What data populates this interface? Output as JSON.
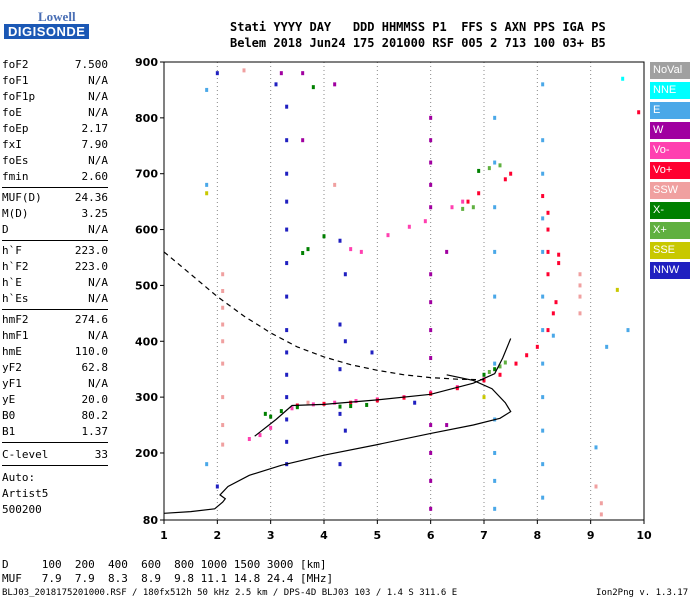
{
  "logo": {
    "line1": "Lowell",
    "line2": "DIGISONDE"
  },
  "header": {
    "line1": "Stati YYYY DAY   DDD HHMMSS P1  FFS S AXN PPS IGA PS",
    "line2": "Belem 2018 Jun24 175 201000 RSF 005 2 713 100 03+ B5"
  },
  "params_group1": [
    {
      "name": "foF2",
      "value": "7.500"
    },
    {
      "name": "foF1",
      "value": "N/A"
    },
    {
      "name": "foF1p",
      "value": "N/A"
    },
    {
      "name": "foE",
      "value": "N/A"
    },
    {
      "name": "foEp",
      "value": "2.17"
    },
    {
      "name": "fxI",
      "value": "7.90"
    },
    {
      "name": "foEs",
      "value": "N/A"
    },
    {
      "name": "fmin",
      "value": "2.60"
    }
  ],
  "params_group2": [
    {
      "name": "MUF(D)",
      "value": "24.36"
    },
    {
      "name": "M(D)",
      "value": "3.25"
    },
    {
      "name": "D",
      "value": "N/A"
    }
  ],
  "params_group3": [
    {
      "name": "h`F",
      "value": "223.0"
    },
    {
      "name": "h`F2",
      "value": "223.0"
    },
    {
      "name": "h`E",
      "value": "N/A"
    },
    {
      "name": "h`Es",
      "value": "N/A"
    }
  ],
  "params_group4": [
    {
      "name": "hmF2",
      "value": "274.6"
    },
    {
      "name": "hmF1",
      "value": "N/A"
    },
    {
      "name": "hmE",
      "value": "110.0"
    },
    {
      "name": "yF2",
      "value": "62.8"
    },
    {
      "name": "yF1",
      "value": "N/A"
    },
    {
      "name": "yE",
      "value": "20.0"
    },
    {
      "name": "B0",
      "value": "80.2"
    },
    {
      "name": "B1",
      "value": "1.37"
    }
  ],
  "clevel": {
    "name": "C-level",
    "value": "33"
  },
  "auto": {
    "line1": "Auto:",
    "line2": "Artist5",
    "line3": "500200"
  },
  "legend": [
    {
      "label": "NoVal",
      "color": "#a0a0a0"
    },
    {
      "label": "NNE",
      "color": "#00ffff"
    },
    {
      "label": "E",
      "color": "#4aa8e8"
    },
    {
      "label": "W",
      "color": "#a000a0"
    },
    {
      "label": "Vo-",
      "color": "#ff40b0"
    },
    {
      "label": "Vo+",
      "color": "#ff0030"
    },
    {
      "label": "SSW",
      "color": "#f0a0a0"
    },
    {
      "label": "X-",
      "color": "#008000"
    },
    {
      "label": "X+",
      "color": "#60b040"
    },
    {
      "label": "SSE",
      "color": "#c8c800"
    },
    {
      "label": "NNW",
      "color": "#2020c0"
    }
  ],
  "footer": {
    "line1": "D     100  200  400  600  800 1000 1500 3000 [km]",
    "line2": "MUF   7.9  7.9  8.3  8.9  9.8 11.1 14.8 24.4 [MHz]",
    "line3": "BLJ03_2018175201000.RSF / 180fx512h 50 kHz 2.5 km / DPS-4D BLJ03 103 / 1.4 S 311.6 E",
    "version": "Ion2Png v. 1.3.17"
  },
  "chart_data": {
    "type": "scatter",
    "title": "",
    "xlabel": "",
    "ylabel": "",
    "xlim": [
      1,
      10
    ],
    "ylim": [
      80,
      900
    ],
    "xticks": [
      1,
      2,
      3,
      4,
      5,
      6,
      7,
      8,
      9,
      10
    ],
    "yticks": [
      80,
      200,
      300,
      400,
      500,
      600,
      700,
      800,
      900
    ],
    "lines": [
      {
        "name": "profile",
        "color": "#000000",
        "style": "solid",
        "points": [
          [
            1.0,
            92
          ],
          [
            1.5,
            95
          ],
          [
            1.95,
            100
          ],
          [
            2.1,
            112
          ],
          [
            2.15,
            118
          ],
          [
            2.05,
            125
          ],
          [
            2.2,
            140
          ],
          [
            2.6,
            160
          ],
          [
            3.2,
            178
          ],
          [
            4.0,
            196
          ],
          [
            5.0,
            215
          ],
          [
            6.0,
            235
          ],
          [
            6.8,
            250
          ],
          [
            7.3,
            262
          ],
          [
            7.5,
            274
          ],
          [
            7.4,
            290
          ],
          [
            7.15,
            315
          ],
          [
            6.8,
            330
          ],
          [
            6.3,
            340
          ]
        ]
      },
      {
        "name": "trace",
        "color": "#000000",
        "style": "solid",
        "points": [
          [
            2.7,
            230
          ],
          [
            3.1,
            260
          ],
          [
            3.4,
            285
          ],
          [
            4.0,
            287
          ],
          [
            5.0,
            295
          ],
          [
            6.0,
            305
          ],
          [
            6.8,
            325
          ],
          [
            7.2,
            342
          ],
          [
            7.35,
            370
          ],
          [
            7.5,
            405
          ]
        ]
      },
      {
        "name": "extrapolation",
        "color": "#000000",
        "style": "dashed",
        "points": [
          [
            1.0,
            560
          ],
          [
            1.5,
            520
          ],
          [
            2.0,
            480
          ],
          [
            2.5,
            445
          ],
          [
            3.0,
            415
          ],
          [
            3.5,
            390
          ],
          [
            4.0,
            372
          ],
          [
            4.5,
            358
          ],
          [
            5.0,
            348
          ],
          [
            5.5,
            340
          ],
          [
            6.0,
            335
          ],
          [
            6.5,
            332
          ],
          [
            7.0,
            331
          ]
        ]
      }
    ],
    "series": [
      {
        "name": "NNW",
        "color": "#2020c0",
        "points": [
          [
            3.3,
            820
          ],
          [
            3.3,
            760
          ],
          [
            3.3,
            700
          ],
          [
            3.3,
            650
          ],
          [
            3.3,
            600
          ],
          [
            3.3,
            540
          ],
          [
            3.3,
            480
          ],
          [
            3.3,
            420
          ],
          [
            3.3,
            380
          ],
          [
            3.3,
            340
          ],
          [
            3.3,
            300
          ],
          [
            3.3,
            260
          ],
          [
            3.3,
            220
          ],
          [
            3.3,
            180
          ],
          [
            4.3,
            580
          ],
          [
            4.3,
            430
          ],
          [
            4.3,
            350
          ],
          [
            4.3,
            270
          ],
          [
            4.3,
            180
          ],
          [
            4.4,
            520
          ],
          [
            4.4,
            400
          ],
          [
            4.4,
            240
          ],
          [
            2.0,
            880
          ],
          [
            2.0,
            140
          ],
          [
            3.1,
            860
          ],
          [
            4.9,
            380
          ],
          [
            5.7,
            290
          ]
        ]
      },
      {
        "name": "W",
        "color": "#a000a0",
        "points": [
          [
            6.0,
            800
          ],
          [
            6.0,
            760
          ],
          [
            6.0,
            720
          ],
          [
            6.0,
            680
          ],
          [
            6.0,
            640
          ],
          [
            6.0,
            520
          ],
          [
            6.0,
            470
          ],
          [
            6.0,
            420
          ],
          [
            6.0,
            370
          ],
          [
            6.0,
            250
          ],
          [
            6.0,
            200
          ],
          [
            6.0,
            150
          ],
          [
            6.0,
            100
          ],
          [
            3.6,
            880
          ],
          [
            3.6,
            760
          ],
          [
            4.2,
            860
          ],
          [
            3.2,
            880
          ],
          [
            6.3,
            250
          ],
          [
            6.3,
            560
          ]
        ]
      },
      {
        "name": "E",
        "color": "#4aa8e8",
        "points": [
          [
            7.2,
            800
          ],
          [
            7.2,
            720
          ],
          [
            7.2,
            640
          ],
          [
            7.2,
            560
          ],
          [
            7.2,
            480
          ],
          [
            7.2,
            360
          ],
          [
            7.2,
            260
          ],
          [
            7.2,
            200
          ],
          [
            7.2,
            150
          ],
          [
            7.2,
            100
          ],
          [
            8.1,
            860
          ],
          [
            8.1,
            760
          ],
          [
            8.1,
            700
          ],
          [
            8.1,
            620
          ],
          [
            8.1,
            560
          ],
          [
            8.1,
            480
          ],
          [
            8.1,
            420
          ],
          [
            8.1,
            360
          ],
          [
            8.1,
            300
          ],
          [
            8.1,
            240
          ],
          [
            8.1,
            180
          ],
          [
            8.1,
            120
          ],
          [
            1.8,
            850
          ],
          [
            1.8,
            680
          ],
          [
            1.8,
            180
          ],
          [
            8.3,
            410
          ],
          [
            9.3,
            390
          ],
          [
            9.7,
            420
          ],
          [
            9.1,
            210
          ]
        ]
      },
      {
        "name": "Vo-",
        "color": "#ff40b0",
        "points": [
          [
            2.6,
            225
          ],
          [
            2.8,
            232
          ],
          [
            3.0,
            245
          ],
          [
            3.4,
            280
          ],
          [
            3.8,
            287
          ],
          [
            4.2,
            290
          ],
          [
            4.6,
            293
          ],
          [
            5.0,
            296
          ],
          [
            5.5,
            300
          ],
          [
            6.0,
            308
          ],
          [
            6.5,
            318
          ],
          [
            7.0,
            332
          ],
          [
            4.5,
            565
          ],
          [
            4.7,
            560
          ],
          [
            5.2,
            590
          ],
          [
            5.6,
            605
          ],
          [
            5.9,
            615
          ],
          [
            6.4,
            640
          ],
          [
            6.6,
            650
          ]
        ]
      },
      {
        "name": "Vo+",
        "color": "#ff0030",
        "points": [
          [
            3.5,
            285
          ],
          [
            4.0,
            288
          ],
          [
            4.5,
            290
          ],
          [
            5.0,
            294
          ],
          [
            5.5,
            299
          ],
          [
            6.0,
            306
          ],
          [
            6.5,
            316
          ],
          [
            7.0,
            330
          ],
          [
            7.3,
            340
          ],
          [
            7.6,
            360
          ],
          [
            7.8,
            375
          ],
          [
            8.0,
            390
          ],
          [
            8.2,
            420
          ],
          [
            8.3,
            450
          ],
          [
            8.35,
            470
          ],
          [
            8.1,
            660
          ],
          [
            8.2,
            630
          ],
          [
            8.2,
            600
          ],
          [
            8.2,
            560
          ],
          [
            8.2,
            520
          ],
          [
            8.4,
            540
          ],
          [
            8.4,
            555
          ],
          [
            6.7,
            650
          ],
          [
            6.9,
            665
          ],
          [
            7.4,
            690
          ],
          [
            7.5,
            700
          ],
          [
            9.9,
            810
          ]
        ]
      },
      {
        "name": "SSW",
        "color": "#f0a0a0",
        "points": [
          [
            2.1,
            520
          ],
          [
            2.1,
            490
          ],
          [
            2.1,
            460
          ],
          [
            2.1,
            430
          ],
          [
            2.1,
            400
          ],
          [
            2.1,
            360
          ],
          [
            2.1,
            300
          ],
          [
            2.1,
            250
          ],
          [
            2.1,
            215
          ],
          [
            8.8,
            520
          ],
          [
            8.8,
            500
          ],
          [
            8.8,
            480
          ],
          [
            8.8,
            450
          ],
          [
            9.1,
            140
          ],
          [
            9.2,
            110
          ],
          [
            9.2,
            90
          ],
          [
            4.2,
            680
          ],
          [
            2.5,
            885
          ],
          [
            3.7,
            290
          ]
        ]
      },
      {
        "name": "X-",
        "color": "#008000",
        "points": [
          [
            2.9,
            270
          ],
          [
            3.0,
            265
          ],
          [
            3.2,
            275
          ],
          [
            3.5,
            282
          ],
          [
            4.3,
            283
          ],
          [
            4.5,
            284
          ],
          [
            4.8,
            286
          ],
          [
            7.0,
            340
          ],
          [
            7.2,
            350
          ],
          [
            3.6,
            558
          ],
          [
            3.7,
            565
          ],
          [
            4.0,
            588
          ],
          [
            3.8,
            855
          ],
          [
            6.9,
            705
          ]
        ]
      },
      {
        "name": "X+",
        "color": "#60b040",
        "points": [
          [
            7.1,
            345
          ],
          [
            7.3,
            355
          ],
          [
            7.4,
            362
          ],
          [
            6.6,
            637
          ],
          [
            6.8,
            640
          ],
          [
            7.1,
            710
          ],
          [
            7.3,
            715
          ]
        ]
      },
      {
        "name": "SSE",
        "color": "#c8c800",
        "points": [
          [
            9.5,
            492
          ],
          [
            1.8,
            665
          ],
          [
            7.0,
            300
          ]
        ]
      },
      {
        "name": "NNE",
        "color": "#00ffff",
        "points": [
          [
            9.6,
            870
          ]
        ]
      }
    ]
  }
}
